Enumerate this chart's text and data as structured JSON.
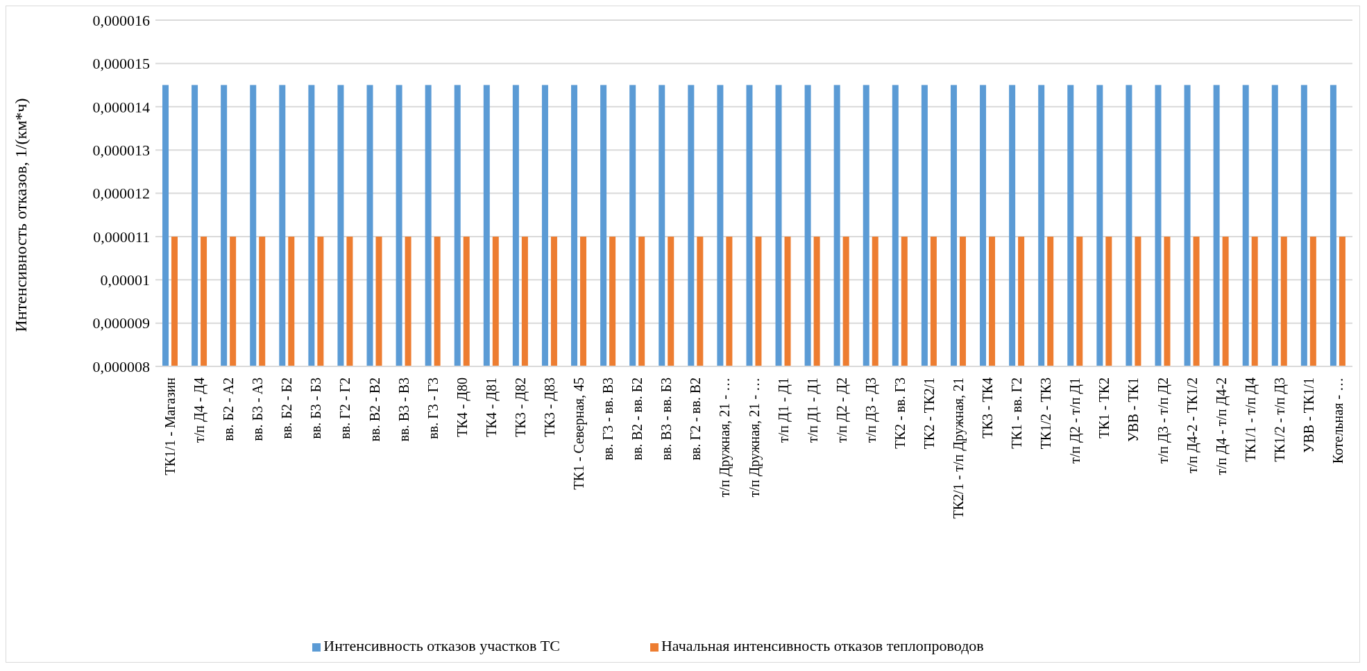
{
  "chart_data": {
    "type": "bar",
    "ylabel": "Интенсивность отказов, 1/(км*ч)",
    "categories": [
      "ТК1/1 - Магазин",
      "т/п Д4 - Д4",
      "вв. Б2 - А2",
      "вв. Б3 - А3",
      "вв. Б2 - Б2",
      "вв. Б3 - Б3",
      "вв. Г2 - Г2",
      "вв. В2 - В2",
      "вв. В3 - В3",
      "вв. Г3 - Г3",
      "ТК4 - Д80",
      "ТК4 - Д81",
      "ТК3 - Д82",
      "ТК3 - Д83",
      "ТК1 - Северная, 45",
      "вв. Г3 - вв. В3",
      "вв. В2 - вв. Б2",
      "вв. В3 - вв. Б3",
      "вв. Г2 - вв. В2",
      "т/п Дружная, 21 - …",
      "т/п Дружная, 21 - …",
      "т/п Д1 - Д1",
      "т/п Д1 - Д1",
      "т/п Д2 - Д2",
      "т/п Д3 - Д3",
      "ТК2 - вв. Г3",
      "ТК2 - ТК2/1",
      "ТК2/1 - т/п Дружная, 21",
      "ТК3 - ТК4",
      "ТК1 - вв. Г2",
      "ТК1/2 - ТК3",
      "т/п Д2 - т/п Д1",
      "ТК1 - ТК2",
      "УВВ - ТК1",
      "т/п Д3 - т/п Д2",
      "т/п Д4-2 - ТК1/2",
      "т/п Д4 - т/п Д4-2",
      "ТК1/1 - т/п Д4",
      "ТК1/2 - т/п Д3",
      "УВВ - ТК1/1",
      "Котельная - …"
    ],
    "series": [
      {
        "name": "Интенсивность отказов участков ТС",
        "color": "#5b9bd5",
        "values": [
          1.45e-05,
          1.45e-05,
          1.45e-05,
          1.45e-05,
          1.45e-05,
          1.45e-05,
          1.45e-05,
          1.45e-05,
          1.45e-05,
          1.45e-05,
          1.45e-05,
          1.45e-05,
          1.45e-05,
          1.45e-05,
          1.45e-05,
          1.45e-05,
          1.45e-05,
          1.45e-05,
          1.45e-05,
          1.45e-05,
          1.45e-05,
          1.45e-05,
          1.45e-05,
          1.45e-05,
          1.45e-05,
          1.45e-05,
          1.45e-05,
          1.45e-05,
          1.45e-05,
          1.45e-05,
          1.45e-05,
          1.45e-05,
          1.45e-05,
          1.45e-05,
          1.45e-05,
          1.45e-05,
          1.45e-05,
          1.45e-05,
          1.45e-05,
          1.45e-05,
          1.45e-05
        ]
      },
      {
        "name": "Начальная интенсивность отказов теплопроводов",
        "color": "#ed7d31",
        "values": [
          1.1e-05,
          1.1e-05,
          1.1e-05,
          1.1e-05,
          1.1e-05,
          1.1e-05,
          1.1e-05,
          1.1e-05,
          1.1e-05,
          1.1e-05,
          1.1e-05,
          1.1e-05,
          1.1e-05,
          1.1e-05,
          1.1e-05,
          1.1e-05,
          1.1e-05,
          1.1e-05,
          1.1e-05,
          1.1e-05,
          1.1e-05,
          1.1e-05,
          1.1e-05,
          1.1e-05,
          1.1e-05,
          1.1e-05,
          1.1e-05,
          1.1e-05,
          1.1e-05,
          1.1e-05,
          1.1e-05,
          1.1e-05,
          1.1e-05,
          1.1e-05,
          1.1e-05,
          1.1e-05,
          1.1e-05,
          1.1e-05,
          1.1e-05,
          1.1e-05,
          1.1e-05
        ]
      }
    ],
    "ylim": [
      8e-06,
      1.6e-05
    ],
    "yticks": [
      {
        "value": 8e-06,
        "label": "0,000008"
      },
      {
        "value": 9e-06,
        "label": "0,000009"
      },
      {
        "value": 1e-05,
        "label": "0,00001"
      },
      {
        "value": 1.1e-05,
        "label": "0,000011"
      },
      {
        "value": 1.2e-05,
        "label": "0,000012"
      },
      {
        "value": 1.3e-05,
        "label": "0,000013"
      },
      {
        "value": 1.4e-05,
        "label": "0,000014"
      },
      {
        "value": 1.5e-05,
        "label": "0,000015"
      },
      {
        "value": 1.6e-05,
        "label": "0,000016"
      }
    ],
    "grid": "y",
    "legend": "bottom"
  }
}
